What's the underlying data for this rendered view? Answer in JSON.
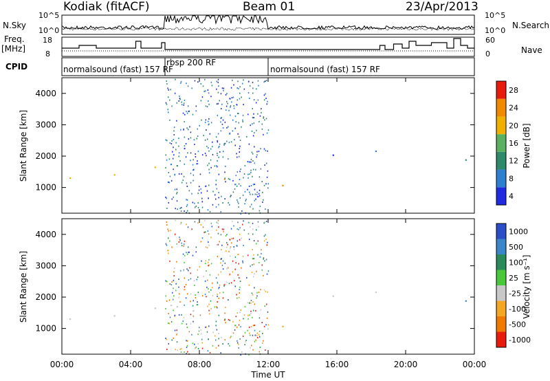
{
  "header": {
    "station": "Kodiak (fitACF)",
    "beam": "Beam 01",
    "date": "23/Apr/2013"
  },
  "left_labels": {
    "nsky": "N.Sky",
    "freq_1": "Freq.",
    "freq_2": "[MHz]",
    "cpid": "CPID"
  },
  "right_labels": {
    "nsearch": "N.Search",
    "nave": "Nave"
  },
  "noise_axis": {
    "left_ticks": [
      "10^5",
      "10^0"
    ],
    "right_ticks": [
      "10^5",
      "10^0"
    ]
  },
  "freq_axis": {
    "left_ticks": [
      "18",
      "8"
    ],
    "right_ticks": [
      "60",
      "0"
    ]
  },
  "cpid_segments": [
    {
      "label": "normalsound (fast) 157 RF",
      "start_hour": 0,
      "end_hour": 6
    },
    {
      "label": "rbsp 200 RF",
      "start_hour": 6,
      "end_hour": 12
    },
    {
      "label": "normalsound (fast) 157 RF",
      "start_hour": 12,
      "end_hour": 24
    }
  ],
  "time_axis": {
    "label": "Time UT",
    "ticks": [
      "00:00",
      "04:00",
      "08:00",
      "12:00",
      "16:00",
      "20:00",
      "00:00"
    ]
  },
  "range_axis": {
    "label": "Slant Range [km]",
    "ticks": [
      "1000",
      "2000",
      "3000",
      "4000"
    ]
  },
  "power_scale": {
    "label": "Power [dB]",
    "ticks": [
      "4",
      "8",
      "12",
      "16",
      "20",
      "24",
      "28"
    ],
    "colors": [
      "#1f2be0",
      "#2f7fd0",
      "#2e8a6a",
      "#58b060",
      "#f0b000",
      "#ef8a00",
      "#e81c0c"
    ]
  },
  "velocity_scale": {
    "label": "Velocity [m s⁻¹]",
    "ticks": [
      "1000",
      "500",
      "100",
      "25",
      "-25",
      "-100",
      "-500",
      "-1000"
    ],
    "colors": [
      "#2a4ec8",
      "#3a86c8",
      "#2a8a5a",
      "#48c83a",
      "#c8c8c8",
      "#f5a623",
      "#f07a00",
      "#e81c0c"
    ]
  },
  "chart_data": [
    {
      "type": "heatmap",
      "title": "Power",
      "xlabel": "Time UT",
      "ylabel": "Slant Range [km]",
      "xlim": [
        0,
        24
      ],
      "ylim": [
        180,
        4500
      ],
      "colorbar": "Power [dB]",
      "colorbar_range": [
        0,
        30
      ]
    },
    {
      "type": "heatmap",
      "title": "Velocity",
      "xlabel": "Time UT",
      "ylabel": "Slant Range [km]",
      "xlim": [
        0,
        24
      ],
      "ylim": [
        180,
        4500
      ],
      "colorbar": "Velocity [m s⁻¹]",
      "colorbar_range": [
        -1000,
        1000
      ]
    }
  ]
}
